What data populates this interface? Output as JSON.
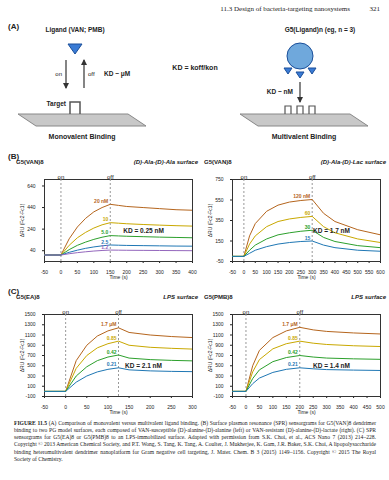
{
  "header": {
    "section": "11.3 Design of bacteria-targeting nanosystems",
    "page": "321"
  },
  "panel_labels": [
    "(A)",
    "(B)",
    "(C)"
  ],
  "diagram": {
    "ligand": "Ligand (VAN; PMB)",
    "dendrimer": "G5(Ligand)n (eg, n = 3)",
    "kd_definition": "KD = koff/kon",
    "on": "on",
    "off": "off",
    "kd_mono": "KD ~ μM",
    "kd_multi": "KD ~ nM",
    "target": "Target",
    "mono": "Monovalent Binding",
    "multi": "Multivalent Binding"
  },
  "chart_data": [
    {
      "type": "line",
      "title": "(D)-Ala-(D)-Ala surface",
      "compound": "G5(VAN)8",
      "annotations": [
        "KD = 0.25 nM"
      ],
      "phases": [
        {
          "label": "on",
          "x": 0
        },
        {
          "label": "off",
          "x": 150
        }
      ],
      "x_label": "Time (s)",
      "y_label": "ΔRU (Fc2-Fc1)",
      "x": [
        -50,
        -25,
        0,
        25,
        50,
        75,
        100,
        125,
        150,
        175,
        200,
        250,
        300,
        350,
        400
      ],
      "series": [
        {
          "name": "20 nM",
          "color": "#b5651d",
          "values": [
            0,
            0,
            0,
            150,
            260,
            340,
            400,
            440,
            470,
            460,
            450,
            440,
            430,
            420,
            415
          ]
        },
        {
          "name": "10",
          "color": "#c9a800",
          "values": [
            0,
            0,
            0,
            90,
            160,
            210,
            250,
            280,
            300,
            295,
            290,
            283,
            277,
            272,
            268
          ]
        },
        {
          "name": "5.0",
          "color": "#2ca02c",
          "values": [
            0,
            0,
            0,
            50,
            90,
            120,
            145,
            165,
            180,
            177,
            174,
            170,
            166,
            163,
            160
          ]
        },
        {
          "name": "2.5",
          "color": "#1f77b4",
          "values": [
            0,
            0,
            0,
            25,
            45,
            62,
            75,
            85,
            93,
            91,
            89,
            87,
            85,
            83,
            82
          ]
        },
        {
          "name": "1.2",
          "color": "#9467bd",
          "values": [
            0,
            0,
            0,
            12,
            22,
            30,
            37,
            42,
            46,
            45,
            44,
            43,
            42,
            41,
            40
          ]
        }
      ],
      "xlim": [
        -50,
        400
      ],
      "xticks": [
        -50,
        0,
        50,
        100,
        150,
        200,
        250,
        300,
        350,
        400
      ],
      "ylim": [
        -60,
        700
      ],
      "yticks": [
        40,
        240,
        440,
        640
      ],
      "grid": false
    },
    {
      "type": "line",
      "title": "(D)-Ala-(D)-Lac surface",
      "compound": "G5(VAN)8",
      "annotations": [
        "KD = 1.7 nM"
      ],
      "phases": [
        {
          "label": "on",
          "x": 0
        },
        {
          "label": "off",
          "x": 300
        }
      ],
      "x_label": "Time (s)",
      "y_label": "ΔRU (Fc2-Fc1)",
      "x": [
        -50,
        0,
        25,
        50,
        100,
        150,
        200,
        250,
        300,
        350,
        400,
        500,
        600
      ],
      "series": [
        {
          "name": "120 nM",
          "color": "#b5651d",
          "values": [
            0,
            0,
            200,
            320,
            440,
            500,
            530,
            545,
            555,
            420,
            340,
            260,
            210
          ]
        },
        {
          "name": "60",
          "color": "#c9a800",
          "values": [
            0,
            0,
            120,
            200,
            290,
            340,
            365,
            380,
            390,
            290,
            230,
            170,
            135
          ]
        },
        {
          "name": "30",
          "color": "#2ca02c",
          "values": [
            0,
            0,
            60,
            110,
            170,
            210,
            230,
            245,
            255,
            185,
            145,
            105,
            85
          ]
        },
        {
          "name": "15",
          "color": "#1f77b4",
          "values": [
            0,
            0,
            30,
            60,
            95,
            120,
            135,
            145,
            150,
            110,
            85,
            60,
            50
          ]
        }
      ],
      "xlim": [
        -50,
        600
      ],
      "xticks": [
        -50,
        0,
        50,
        100,
        150,
        200,
        250,
        300,
        350,
        400,
        450,
        500,
        550,
        600
      ],
      "ylim": [
        -50,
        750
      ],
      "yticks": [
        -50,
        150,
        350,
        550,
        750
      ],
      "grid": false
    },
    {
      "type": "line",
      "title": "LPS surface",
      "compound": "G5(EA)8",
      "annotations": [
        "KD = 2.1 nM"
      ],
      "phases": [
        {
          "label": "on",
          "x": 0
        },
        {
          "label": "off",
          "x": 125
        }
      ],
      "x_label": "Time (s)",
      "y_label": "ΔRU (Fc2-Fc1)",
      "x": [
        -50,
        0,
        25,
        50,
        75,
        100,
        125,
        150,
        200,
        250,
        300
      ],
      "series": [
        {
          "name": "1.7 μM",
          "color": "#b5651d",
          "values": [
            0,
            0,
            600,
            900,
            1080,
            1180,
            1240,
            1150,
            1100,
            1070,
            1050
          ]
        },
        {
          "name": "0.85",
          "color": "#c9a800",
          "values": [
            0,
            0,
            450,
            700,
            850,
            930,
            980,
            900,
            860,
            840,
            825
          ]
        },
        {
          "name": "0.42",
          "color": "#2ca02c",
          "values": [
            0,
            0,
            300,
            480,
            600,
            670,
            710,
            650,
            620,
            605,
            595
          ]
        },
        {
          "name": "0.21",
          "color": "#1f77b4",
          "values": [
            0,
            0,
            180,
            300,
            380,
            430,
            460,
            420,
            400,
            390,
            385
          ]
        }
      ],
      "xlim": [
        -50,
        300
      ],
      "xticks": [
        -50,
        0,
        50,
        100,
        150,
        200,
        250,
        300
      ],
      "ylim": [
        -100,
        1500
      ],
      "yticks": [
        -100,
        100,
        300,
        500,
        700,
        900,
        1100,
        1300,
        1500
      ],
      "grid": false
    },
    {
      "type": "line",
      "title": "LPS surface",
      "compound": "G5(PMB)8",
      "annotations": [
        "KD = 1.4 nM"
      ],
      "phases": [
        {
          "label": "on",
          "x": 0
        },
        {
          "label": "off",
          "x": 200
        }
      ],
      "x_label": "Time (s)",
      "y_label": "ΔRU (Fc2-Fc1)",
      "x": [
        -50,
        0,
        25,
        50,
        100,
        150,
        200,
        250,
        300,
        400,
        500
      ],
      "series": [
        {
          "name": "1.7 μM",
          "color": "#b5651d",
          "values": [
            0,
            0,
            500,
            800,
            1050,
            1180,
            1250,
            1200,
            1170,
            1140,
            1120
          ]
        },
        {
          "name": "0.85",
          "color": "#c9a800",
          "values": [
            0,
            0,
            380,
            620,
            830,
            930,
            980,
            940,
            915,
            890,
            875
          ]
        },
        {
          "name": "0.42",
          "color": "#2ca02c",
          "values": [
            0,
            0,
            250,
            420,
            580,
            660,
            700,
            670,
            650,
            635,
            625
          ]
        },
        {
          "name": "0.21",
          "color": "#1f77b4",
          "values": [
            0,
            0,
            150,
            260,
            370,
            430,
            460,
            440,
            425,
            415,
            408
          ]
        }
      ],
      "xlim": [
        -50,
        500
      ],
      "xticks": [
        -50,
        0,
        50,
        100,
        150,
        200,
        250,
        300,
        350,
        400,
        450,
        500
      ],
      "ylim": [
        -100,
        1500
      ],
      "yticks": [
        -100,
        100,
        300,
        500,
        700,
        900,
        1100,
        1300,
        1500
      ],
      "grid": false
    }
  ],
  "caption": {
    "label": "FIGURE 11.5",
    "text": "(A) Comparison of monovalent versus multivalent ligand binding. (B) Surface plasmon resonance (SPR) sensorgrams for G5(VAN)8 dendrimer binding to two PG model surfaces, each composed of VAN-susceptible (D)-alanine-(D)-alanine (left) or VAN-resistant (D)-alanine-(D)-lactate (right). (C) SPR sensorgrams for G5(EA)8 or G5(PMB)8 to an LPS-immobilized surface. Adapted with permission from S.K. Choi, et al., ACS Nano 7 (2013) 214–228. Copyright © 2013 American Chemical Society, and P.T. Wong, S. Tang, K. Tang, A. Coulter, J. Mukherjee, K. Gam, J.R. Baker, S.K. Choi, A lipopolysaccharide binding heteromultivalent dendrimer nanoplatform for Gram negative cell targeting, J. Mater. Chem. B 3 (2015) 1149–1156. Copyright © 2015 The Royal Society of Chemistry."
  }
}
